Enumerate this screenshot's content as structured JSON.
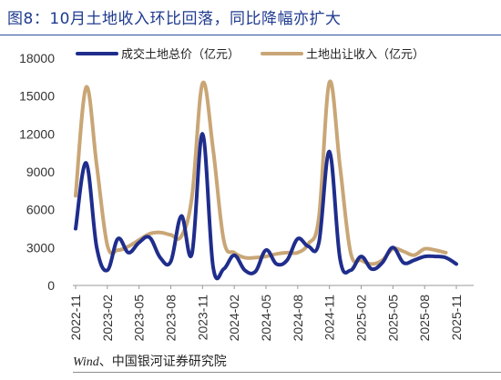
{
  "title": "图8：10月土地收入环比回落，同比降幅亦扩大",
  "source": {
    "latin": "Wind",
    "rest": "、中国银河证券研究院"
  },
  "colors": {
    "series1": "#1f2d8c",
    "series2": "#c9a676",
    "title": "#1f3b8f"
  },
  "chart_data": {
    "type": "line",
    "ylim": [
      0,
      18000
    ],
    "yticks": [
      "0",
      "3000",
      "6000",
      "9000",
      "12000",
      "15000",
      "18000"
    ],
    "grid": false,
    "legend_position": "top",
    "x_tick_labels": [
      "2022-11",
      "2023-02",
      "2023-05",
      "2023-08",
      "2023-11",
      "2024-02",
      "2024-05",
      "2024-08",
      "2024-11",
      "2025-02",
      "2025-05",
      "2025-08",
      "2025-11"
    ],
    "x": [
      "2022-11",
      "2022-12",
      "2023-01",
      "2023-02",
      "2023-03",
      "2023-04",
      "2023-05",
      "2023-06",
      "2023-07",
      "2023-08",
      "2023-09",
      "2023-10",
      "2023-11",
      "2023-12",
      "2024-01",
      "2024-02",
      "2024-03",
      "2024-04",
      "2024-05",
      "2024-06",
      "2024-07",
      "2024-08",
      "2024-09",
      "2024-10",
      "2024-11",
      "2024-12",
      "2025-01",
      "2025-02",
      "2025-03",
      "2025-04",
      "2025-05",
      "2025-06",
      "2025-07",
      "2025-08",
      "2025-09",
      "2025-10",
      "2025-11"
    ],
    "series": [
      {
        "name": "成交土地总价（亿元）",
        "values": [
          4500,
          9700,
          3000,
          1200,
          3700,
          2600,
          3400,
          3800,
          2200,
          1900,
          5500,
          2500,
          12000,
          1500,
          1300,
          2400,
          1200,
          1100,
          2800,
          1700,
          2000,
          3700,
          3100,
          3400,
          10600,
          2100,
          1200,
          2300,
          1300,
          1800,
          3000,
          1800,
          2000,
          2300,
          2300,
          2200,
          1700
        ]
      },
      {
        "name": "土地出让收入（亿元）",
        "values": [
          7100,
          15700,
          9500,
          3200,
          2800,
          3100,
          3600,
          4100,
          4200,
          4000,
          3900,
          7000,
          16000,
          10800,
          3600,
          2600,
          2200,
          2200,
          2300,
          2500,
          2600,
          2600,
          3300,
          5400,
          16100,
          9400,
          2600,
          2000,
          1700,
          2000,
          2900,
          2700,
          2400,
          2900,
          2800,
          2600,
          null
        ]
      }
    ]
  }
}
